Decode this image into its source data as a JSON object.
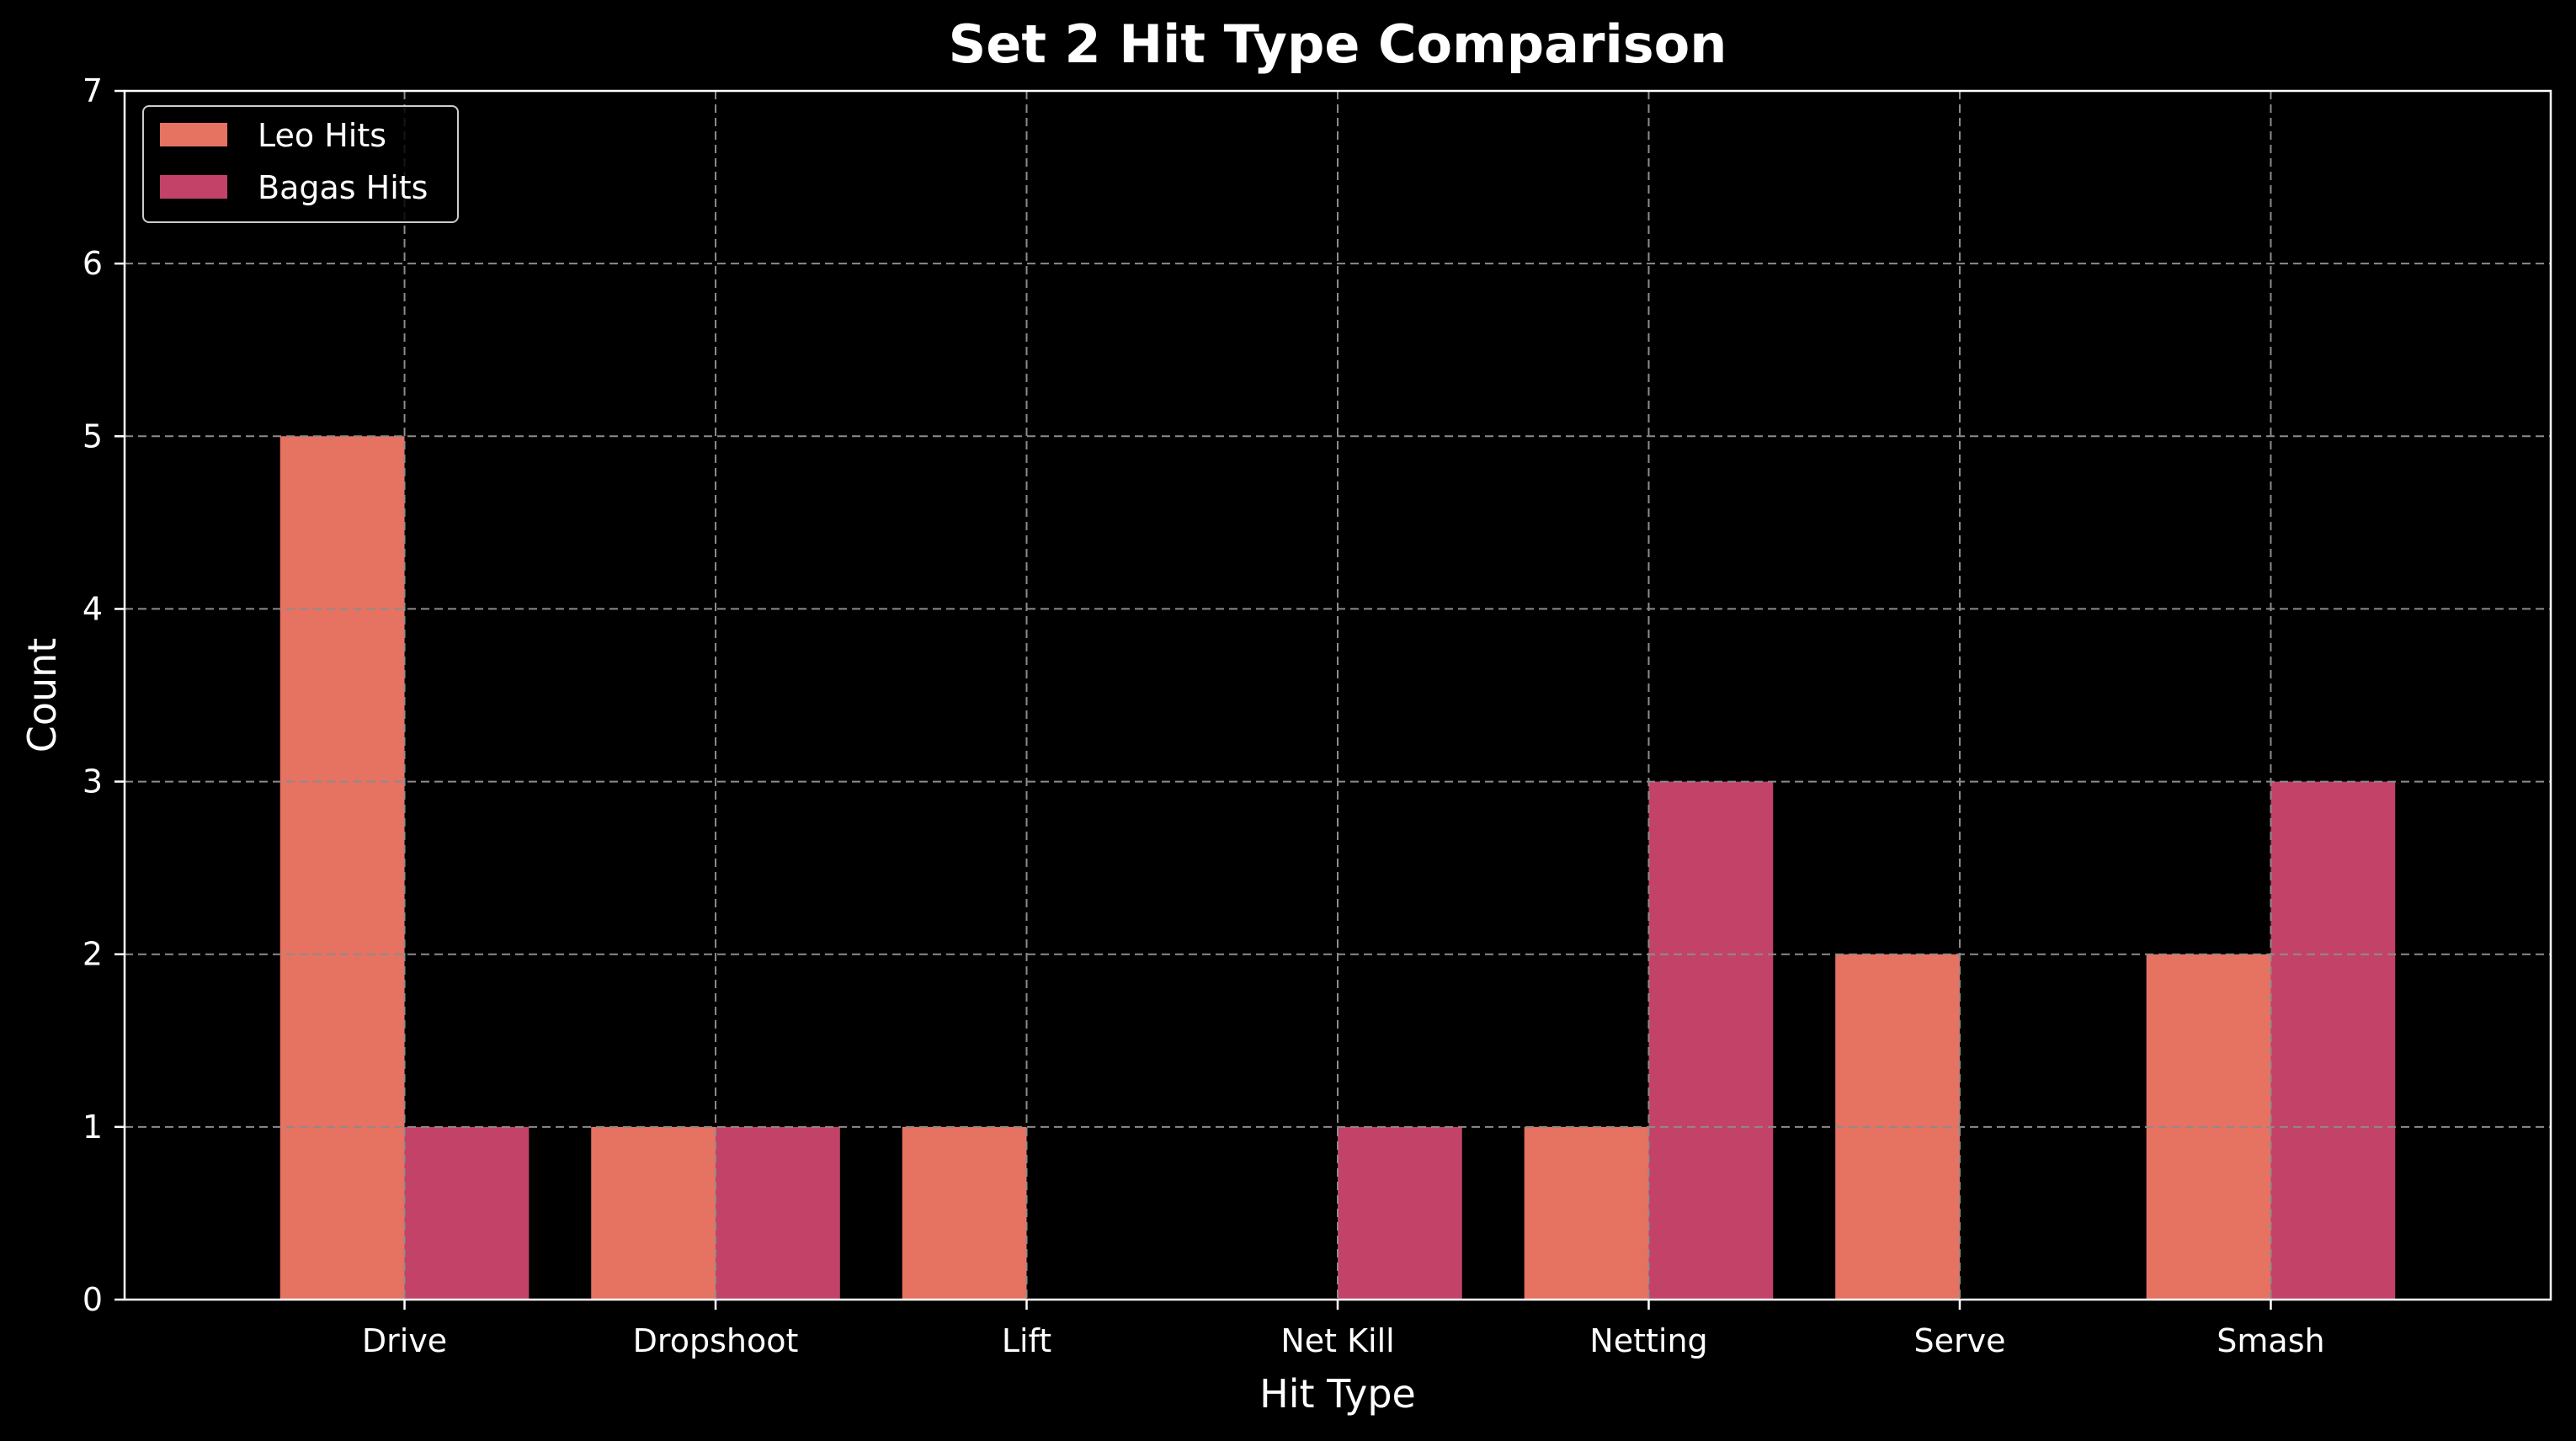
{
  "chart_data": {
    "type": "bar",
    "title": "Set 2 Hit Type Comparison",
    "xlabel": "Hit Type",
    "ylabel": "Count",
    "categories": [
      "Drive",
      "Dropshoot",
      "Lift",
      "Net Kill",
      "Netting",
      "Serve",
      "Smash"
    ],
    "series": [
      {
        "name": "Leo Hits",
        "values": [
          5,
          1,
          1,
          0,
          1,
          2,
          2
        ],
        "color": "#e67261"
      },
      {
        "name": "Bagas Hits",
        "values": [
          1,
          1,
          0,
          1,
          3,
          0,
          3
        ],
        "color": "#c24268"
      }
    ],
    "ylim": [
      0,
      7
    ],
    "yticks": [
      0,
      1,
      2,
      3,
      4,
      5,
      6,
      7
    ],
    "grid": true,
    "legend_position": "upper left",
    "background": "#000000",
    "foreground": "#ffffff",
    "grid_color": "#8c8c8c"
  }
}
